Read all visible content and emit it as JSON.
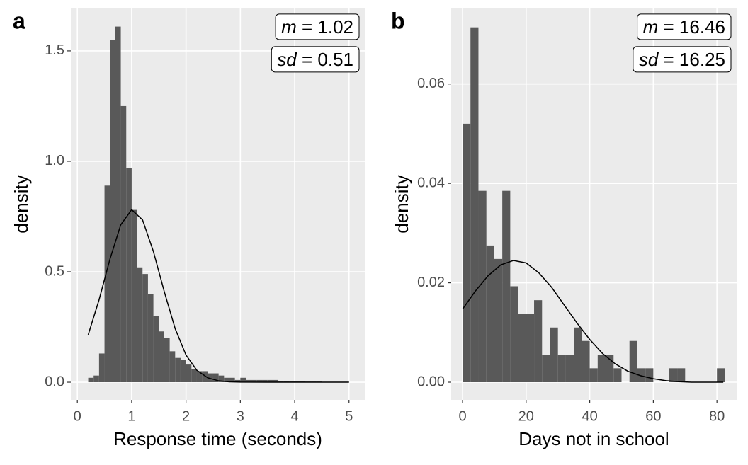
{
  "chart_data": [
    {
      "type": "histogram",
      "panel_label": "a",
      "x_label": "Response time (seconds)",
      "y_label": "density",
      "bins": [
        0.2,
        0.3,
        0.4,
        0.5,
        0.6,
        0.7,
        0.8,
        0.9,
        1.0,
        1.1,
        1.2,
        1.3,
        1.4,
        1.5,
        1.6,
        1.7,
        1.8,
        1.9,
        2.0,
        2.1,
        2.2,
        2.3,
        2.4,
        2.5,
        2.6,
        2.7,
        2.8,
        2.9,
        3.0,
        3.1,
        3.2,
        3.3,
        3.4,
        3.5,
        3.6,
        3.7,
        3.8,
        3.9,
        4.0,
        4.1,
        4.2,
        4.3,
        4.4,
        4.5,
        4.6,
        4.7,
        4.8,
        4.9,
        5.0
      ],
      "values": [
        0.02,
        0.03,
        0.13,
        0.89,
        1.55,
        1.61,
        1.25,
        0.97,
        0.78,
        0.52,
        0.49,
        0.4,
        0.3,
        0.23,
        0.2,
        0.14,
        0.11,
        0.1,
        0.08,
        0.06,
        0.05,
        0.05,
        0.04,
        0.04,
        0.03,
        0.02,
        0.02,
        0.01,
        0.02,
        0.01,
        0.01,
        0.01,
        0.01,
        0.01,
        0.01,
        0.005,
        0.005,
        0.005,
        0.005,
        0.005,
        0.003,
        0.003,
        0.003,
        0.002,
        0.002,
        0.002,
        0.002,
        0.002
      ],
      "color": "#595959",
      "curve": {
        "color": "#000000",
        "x": [
          0.2,
          0.4,
          0.6,
          0.8,
          1.0,
          1.2,
          1.4,
          1.6,
          1.8,
          2.0,
          2.2,
          2.4,
          2.6,
          2.8,
          3.0,
          3.5,
          4.0,
          4.5,
          5.0
        ],
        "y": [
          0.215,
          0.373,
          0.557,
          0.713,
          0.781,
          0.735,
          0.592,
          0.41,
          0.243,
          0.123,
          0.054,
          0.02,
          0.0064,
          0.0018,
          0.0004,
          0,
          0,
          0,
          0
        ]
      },
      "annotations": [
        "m = 1.02",
        "sd = 0.51"
      ],
      "xlim": [
        -0.12,
        5.29
      ],
      "ylim": [
        -0.08,
        1.692
      ],
      "xticks": [
        0,
        1,
        2,
        3,
        4,
        5
      ],
      "yticks": [
        {
          "value": 0,
          "label": "0.0"
        },
        0.5,
        {
          "value": 1,
          "label": "1.0"
        },
        1.5
      ],
      "grid": true
    },
    {
      "type": "histogram",
      "panel_label": "b",
      "x_label": "Days not in school",
      "y_label": "density",
      "bins": [
        0,
        2.5,
        5,
        7.5,
        10,
        12.5,
        15,
        17.5,
        20,
        22.5,
        25,
        27.5,
        30,
        32.5,
        35,
        37.5,
        40,
        42.5,
        45,
        47.5,
        50,
        52.5,
        55,
        57.5,
        60,
        62.5,
        65,
        67.5,
        70,
        72.5,
        75,
        77.5,
        80,
        82.5
      ],
      "values": [
        0.052,
        0.0714,
        0.0385,
        0.0275,
        0.0248,
        0.0385,
        0.0193,
        0.0138,
        0.0138,
        0.0165,
        0.0055,
        0.011,
        0.0055,
        0.0055,
        0.011,
        0.0083,
        0.0028,
        0.0055,
        0.0055,
        0.0028,
        0,
        0.0083,
        0.0028,
        0.0028,
        0,
        0,
        0.0028,
        0.0028,
        0,
        0,
        0,
        0,
        0.0028
      ],
      "color": "#595959",
      "curve": {
        "color": "#000000",
        "x": [
          0,
          4,
          8,
          12,
          16,
          20,
          24,
          28,
          32,
          36,
          40,
          44,
          48,
          52,
          56,
          60,
          64,
          68,
          72,
          76,
          80,
          82
        ],
        "y": [
          0.0147,
          0.0183,
          0.0214,
          0.0236,
          0.0245,
          0.024,
          0.022,
          0.0191,
          0.0155,
          0.0119,
          0.0086,
          0.0058,
          0.0037,
          0.0022,
          0.0013,
          0.0007,
          0.0003,
          0.0001,
          0,
          0,
          0,
          0
        ]
      },
      "annotations": [
        "m = 16.46",
        "sd = 16.25"
      ],
      "xlim": [
        -3.57,
        86.2
      ],
      "ylim": [
        -0.00356,
        0.0752
      ],
      "xticks": [
        0,
        20,
        40,
        60,
        80
      ],
      "yticks": [
        {
          "value": 0,
          "label": "0.00"
        },
        0.02,
        0.04,
        0.06
      ],
      "grid": true
    }
  ]
}
